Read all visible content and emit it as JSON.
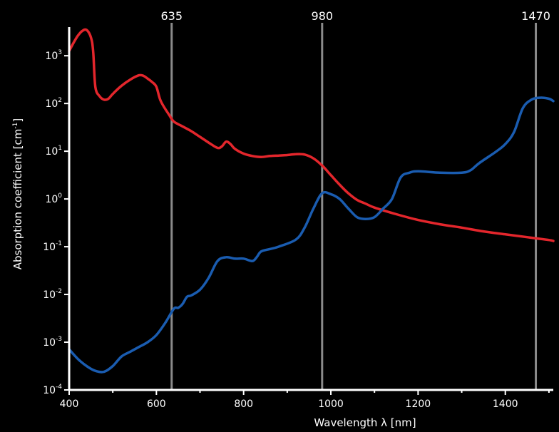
{
  "chart_data": {
    "type": "line",
    "xlabel": "Wavelength λ [nm]",
    "ylabel_base": "Absorption coefficient [cm",
    "ylabel_exp": "-1",
    "ylabel_end": "]",
    "xlim": [
      400,
      1510
    ],
    "ylim_log10": [
      -4,
      3.6
    ],
    "x_scale": "linear",
    "y_scale": "log",
    "grid": false,
    "x_ticks": [
      400,
      600,
      800,
      1000,
      1200,
      1400
    ],
    "x_tick_labels": [
      "400",
      "600",
      "800",
      "1000",
      "1200",
      "1400"
    ],
    "y_ticks_exp": [
      -4,
      -3,
      -2,
      -1,
      0,
      1,
      2,
      3
    ],
    "y_tick_base": "10",
    "y_tick_exps": [
      "-4",
      "-3",
      "-2",
      "-1",
      "0",
      "1",
      "2",
      "3"
    ],
    "markers": [
      {
        "x": 635,
        "label": "635"
      },
      {
        "x": 980,
        "label": "980"
      },
      {
        "x": 1470,
        "label": "1470"
      }
    ],
    "colors": {
      "background": "#000000",
      "axis": "#ffffff",
      "marker_line": "#8a8a8a",
      "series_red": "#e3262c",
      "series_blue": "#1a5cb0"
    },
    "series": [
      {
        "color": "#e3262c",
        "x": [
          400,
          410,
          420,
          430,
          440,
          450,
          455,
          460,
          470,
          480,
          490,
          500,
          520,
          540,
          560,
          570,
          580,
          590,
          600,
          610,
          630,
          640,
          660,
          680,
          700,
          720,
          740,
          750,
          760,
          770,
          780,
          800,
          820,
          840,
          860,
          880,
          900,
          920,
          940,
          960,
          980,
          1000,
          1020,
          1040,
          1060,
          1080,
          1100,
          1150,
          1200,
          1250,
          1300,
          1350,
          1400,
          1450,
          1500,
          1510
        ],
        "log10_y": [
          3.1,
          3.27,
          3.42,
          3.52,
          3.54,
          3.38,
          3.1,
          2.35,
          2.15,
          2.08,
          2.1,
          2.2,
          2.37,
          2.5,
          2.59,
          2.58,
          2.52,
          2.45,
          2.35,
          2.05,
          1.75,
          1.62,
          1.52,
          1.42,
          1.3,
          1.18,
          1.07,
          1.1,
          1.2,
          1.15,
          1.05,
          0.95,
          0.9,
          0.88,
          0.9,
          0.91,
          0.92,
          0.94,
          0.93,
          0.85,
          0.7,
          0.5,
          0.3,
          0.12,
          -0.02,
          -0.1,
          -0.18,
          -0.32,
          -0.44,
          -0.53,
          -0.6,
          -0.68,
          -0.74,
          -0.8,
          -0.86,
          -0.88
        ]
      },
      {
        "color": "#1a5cb0",
        "x": [
          400,
          420,
          440,
          460,
          480,
          500,
          520,
          540,
          560,
          580,
          600,
          620,
          640,
          650,
          660,
          670,
          680,
          700,
          720,
          740,
          760,
          780,
          800,
          820,
          830,
          840,
          860,
          880,
          920,
          940,
          960,
          980,
          1000,
          1020,
          1040,
          1060,
          1080,
          1100,
          1120,
          1140,
          1160,
          1180,
          1200,
          1250,
          1300,
          1320,
          1340,
          1380,
          1400,
          1420,
          1440,
          1460,
          1480,
          1500,
          1510
        ],
        "log10_y": [
          -3.15,
          -3.35,
          -3.5,
          -3.6,
          -3.62,
          -3.5,
          -3.3,
          -3.2,
          -3.1,
          -3.0,
          -2.85,
          -2.6,
          -2.3,
          -2.28,
          -2.2,
          -2.05,
          -2.02,
          -1.9,
          -1.65,
          -1.3,
          -1.22,
          -1.25,
          -1.25,
          -1.3,
          -1.22,
          -1.1,
          -1.05,
          -1.0,
          -0.85,
          -0.6,
          -0.2,
          0.12,
          0.1,
          0.0,
          -0.2,
          -0.38,
          -0.42,
          -0.38,
          -0.2,
          0.0,
          0.45,
          0.55,
          0.58,
          0.55,
          0.55,
          0.6,
          0.75,
          1.0,
          1.15,
          1.4,
          1.9,
          2.08,
          2.12,
          2.1,
          2.05
        ]
      }
    ]
  }
}
